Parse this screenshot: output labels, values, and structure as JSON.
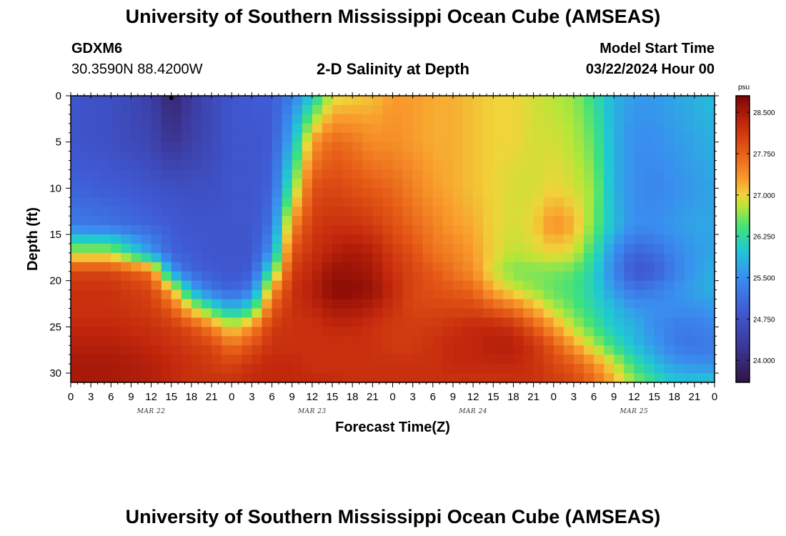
{
  "header": {
    "title_top": "University of Southern Mississippi Ocean Cube (AMSEAS)",
    "station_id": "GDXM6",
    "coordinates": "30.3590N  88.4200W",
    "chart_title": "2-D Salinity at Depth",
    "model_start_label": "Model Start Time",
    "model_start_value": "03/22/2024 Hour 00",
    "title_bottom": "University of Southern Mississippi Ocean Cube (AMSEAS)"
  },
  "chart_data": {
    "type": "heatmap",
    "title": "2-D Salinity at Depth",
    "xlabel": "Forecast Time(Z)",
    "ylabel": "Depth (ft)",
    "x_hours_range": [
      0,
      96
    ],
    "x_tick_labels": [
      "0",
      "3",
      "6",
      "9",
      "12",
      "15",
      "18",
      "21",
      "0",
      "3",
      "6",
      "9",
      "12",
      "15",
      "18",
      "21",
      "0",
      "3",
      "6",
      "9",
      "12",
      "15",
      "18",
      "21",
      "0",
      "3",
      "6",
      "9",
      "12",
      "15",
      "18",
      "21",
      "0"
    ],
    "x_date_labels": [
      {
        "hour": 12,
        "label": "MAR 22"
      },
      {
        "hour": 36,
        "label": "MAR 23"
      },
      {
        "hour": 60,
        "label": "MAR 24"
      },
      {
        "hour": 84,
        "label": "MAR 25"
      }
    ],
    "y_range": [
      0,
      31
    ],
    "y_ticks": [
      0,
      5,
      10,
      15,
      20,
      25,
      30
    ],
    "colorbar": {
      "unit": "psu",
      "range": [
        23.6,
        28.8
      ],
      "ticks": [
        "24.000",
        "24.750",
        "25.500",
        "26.250",
        "27.000",
        "27.750",
        "28.500"
      ],
      "stops": [
        {
          "v": 23.6,
          "c": "#301543"
        },
        {
          "v": 24.3,
          "c": "#3c3a9e"
        },
        {
          "v": 24.9,
          "c": "#3f5bd5"
        },
        {
          "v": 25.5,
          "c": "#3a8ef0"
        },
        {
          "v": 26.0,
          "c": "#20c8d4"
        },
        {
          "v": 26.4,
          "c": "#3ee27c"
        },
        {
          "v": 26.8,
          "c": "#b8e637"
        },
        {
          "v": 27.0,
          "c": "#f0d43a"
        },
        {
          "v": 27.3,
          "c": "#f99a2c"
        },
        {
          "v": 27.8,
          "c": "#e55a16"
        },
        {
          "v": 28.3,
          "c": "#c2270c"
        },
        {
          "v": 28.8,
          "c": "#7e0504"
        }
      ]
    },
    "field": {
      "depths": [
        0,
        5,
        10,
        14,
        17,
        19,
        21,
        23,
        25,
        27,
        29,
        31
      ],
      "series": [
        {
          "hour": 0,
          "values": [
            24.8,
            24.8,
            25.0,
            25.3,
            26.8,
            28.0,
            28.2,
            28.2,
            28.3,
            28.4,
            28.5,
            28.5
          ]
        },
        {
          "hour": 6,
          "values": [
            24.7,
            24.7,
            24.9,
            25.2,
            26.8,
            28.0,
            28.2,
            28.2,
            28.3,
            28.4,
            28.5,
            28.5
          ]
        },
        {
          "hour": 12,
          "values": [
            24.4,
            24.5,
            24.8,
            25.0,
            25.6,
            27.6,
            28.0,
            28.1,
            28.2,
            28.3,
            28.4,
            28.4
          ]
        },
        {
          "hour": 15,
          "values": [
            23.9,
            24.2,
            24.7,
            24.9,
            25.0,
            25.6,
            27.2,
            27.8,
            28.1,
            28.2,
            28.3,
            28.3
          ]
        },
        {
          "hour": 18,
          "values": [
            24.3,
            24.4,
            24.7,
            24.8,
            24.9,
            25.0,
            25.8,
            27.0,
            27.9,
            28.1,
            28.2,
            28.2
          ]
        },
        {
          "hour": 21,
          "values": [
            24.6,
            24.6,
            24.7,
            24.8,
            24.8,
            24.9,
            25.2,
            26.3,
            27.5,
            28.0,
            28.1,
            28.2
          ]
        },
        {
          "hour": 24,
          "values": [
            24.8,
            24.8,
            24.8,
            24.8,
            24.8,
            24.8,
            25.0,
            25.8,
            26.9,
            27.6,
            28.0,
            28.2
          ]
        },
        {
          "hour": 27,
          "values": [
            24.9,
            24.8,
            24.8,
            24.8,
            24.8,
            24.9,
            25.3,
            26.2,
            27.4,
            27.9,
            28.2,
            28.3
          ]
        },
        {
          "hour": 30,
          "values": [
            24.9,
            24.9,
            25.0,
            25.2,
            25.6,
            26.4,
            27.3,
            27.8,
            28.1,
            28.2,
            28.3,
            28.3
          ]
        },
        {
          "hour": 33,
          "values": [
            25.3,
            25.8,
            26.5,
            27.4,
            27.9,
            28.1,
            28.2,
            28.2,
            28.2,
            28.2,
            28.3,
            28.3
          ]
        },
        {
          "hour": 36,
          "values": [
            26.0,
            27.3,
            27.9,
            28.1,
            28.2,
            28.3,
            28.4,
            28.3,
            28.2,
            28.2,
            28.2,
            28.3
          ]
        },
        {
          "hour": 39,
          "values": [
            26.9,
            27.7,
            28.0,
            28.2,
            28.4,
            28.6,
            28.7,
            28.5,
            28.3,
            28.2,
            28.2,
            28.3
          ]
        },
        {
          "hour": 42,
          "values": [
            27.0,
            27.6,
            27.9,
            28.2,
            28.5,
            28.6,
            28.7,
            28.5,
            28.3,
            28.2,
            28.2,
            28.2
          ]
        },
        {
          "hour": 45,
          "values": [
            27.1,
            27.4,
            27.8,
            28.1,
            28.4,
            28.5,
            28.6,
            28.4,
            28.2,
            28.2,
            28.2,
            28.2
          ]
        },
        {
          "hour": 48,
          "values": [
            27.3,
            27.4,
            27.7,
            27.9,
            28.1,
            28.2,
            28.3,
            28.2,
            28.1,
            28.1,
            28.2,
            28.2
          ]
        },
        {
          "hour": 51,
          "values": [
            27.3,
            27.3,
            27.5,
            27.7,
            27.9,
            28.0,
            28.0,
            28.0,
            28.1,
            28.1,
            28.2,
            28.2
          ]
        },
        {
          "hour": 54,
          "values": [
            27.2,
            27.2,
            27.3,
            27.5,
            27.6,
            27.8,
            27.9,
            28.0,
            28.1,
            28.2,
            28.2,
            28.2
          ]
        },
        {
          "hour": 57,
          "values": [
            27.2,
            27.2,
            27.2,
            27.3,
            27.5,
            27.6,
            27.8,
            28.0,
            28.2,
            28.3,
            28.3,
            28.2
          ]
        },
        {
          "hour": 60,
          "values": [
            27.1,
            27.1,
            27.1,
            27.2,
            27.3,
            27.4,
            27.7,
            28.0,
            28.3,
            28.3,
            28.3,
            28.2
          ]
        },
        {
          "hour": 63,
          "values": [
            27.0,
            27.0,
            27.0,
            27.0,
            27.0,
            26.9,
            27.2,
            27.8,
            28.3,
            28.4,
            28.3,
            28.2
          ]
        },
        {
          "hour": 66,
          "values": [
            27.0,
            27.0,
            26.9,
            26.9,
            26.8,
            26.6,
            26.9,
            27.6,
            28.2,
            28.4,
            28.3,
            28.2
          ]
        },
        {
          "hour": 69,
          "values": [
            26.9,
            26.9,
            26.9,
            27.0,
            26.9,
            26.6,
            26.7,
            27.2,
            27.8,
            28.2,
            28.2,
            28.2
          ]
        },
        {
          "hour": 72,
          "values": [
            26.8,
            26.9,
            27.0,
            27.4,
            27.0,
            26.6,
            26.5,
            26.8,
            27.3,
            27.8,
            28.0,
            28.1
          ]
        },
        {
          "hour": 75,
          "values": [
            26.7,
            26.8,
            26.9,
            27.2,
            26.9,
            26.5,
            26.4,
            26.5,
            26.8,
            27.3,
            27.8,
            28.0
          ]
        },
        {
          "hour": 78,
          "values": [
            26.3,
            26.5,
            26.7,
            26.6,
            26.3,
            26.1,
            26.1,
            26.2,
            26.4,
            26.8,
            27.4,
            27.7
          ]
        },
        {
          "hour": 81,
          "values": [
            25.8,
            25.8,
            25.8,
            25.9,
            25.5,
            25.4,
            25.6,
            25.9,
            26.0,
            26.3,
            26.9,
            27.2
          ]
        },
        {
          "hour": 84,
          "values": [
            25.6,
            25.5,
            25.5,
            25.5,
            25.0,
            24.8,
            25.2,
            25.6,
            25.8,
            25.9,
            26.3,
            26.7
          ]
        },
        {
          "hour": 87,
          "values": [
            25.6,
            25.5,
            25.4,
            25.5,
            25.1,
            24.9,
            25.3,
            25.5,
            25.5,
            25.6,
            25.9,
            26.3
          ]
        },
        {
          "hour": 90,
          "values": [
            25.7,
            25.6,
            25.5,
            25.6,
            25.4,
            25.3,
            25.5,
            25.5,
            25.3,
            25.3,
            25.6,
            26.0
          ]
        },
        {
          "hour": 93,
          "values": [
            25.8,
            25.7,
            25.6,
            25.7,
            25.6,
            25.6,
            25.7,
            25.5,
            25.3,
            25.2,
            25.5,
            26.0
          ]
        },
        {
          "hour": 96,
          "values": [
            25.9,
            25.8,
            25.7,
            25.7,
            25.7,
            25.8,
            25.8,
            25.6,
            25.4,
            25.3,
            25.5,
            26.0
          ]
        }
      ]
    },
    "markers": [
      {
        "hour": 15,
        "depth": 0
      }
    ]
  }
}
